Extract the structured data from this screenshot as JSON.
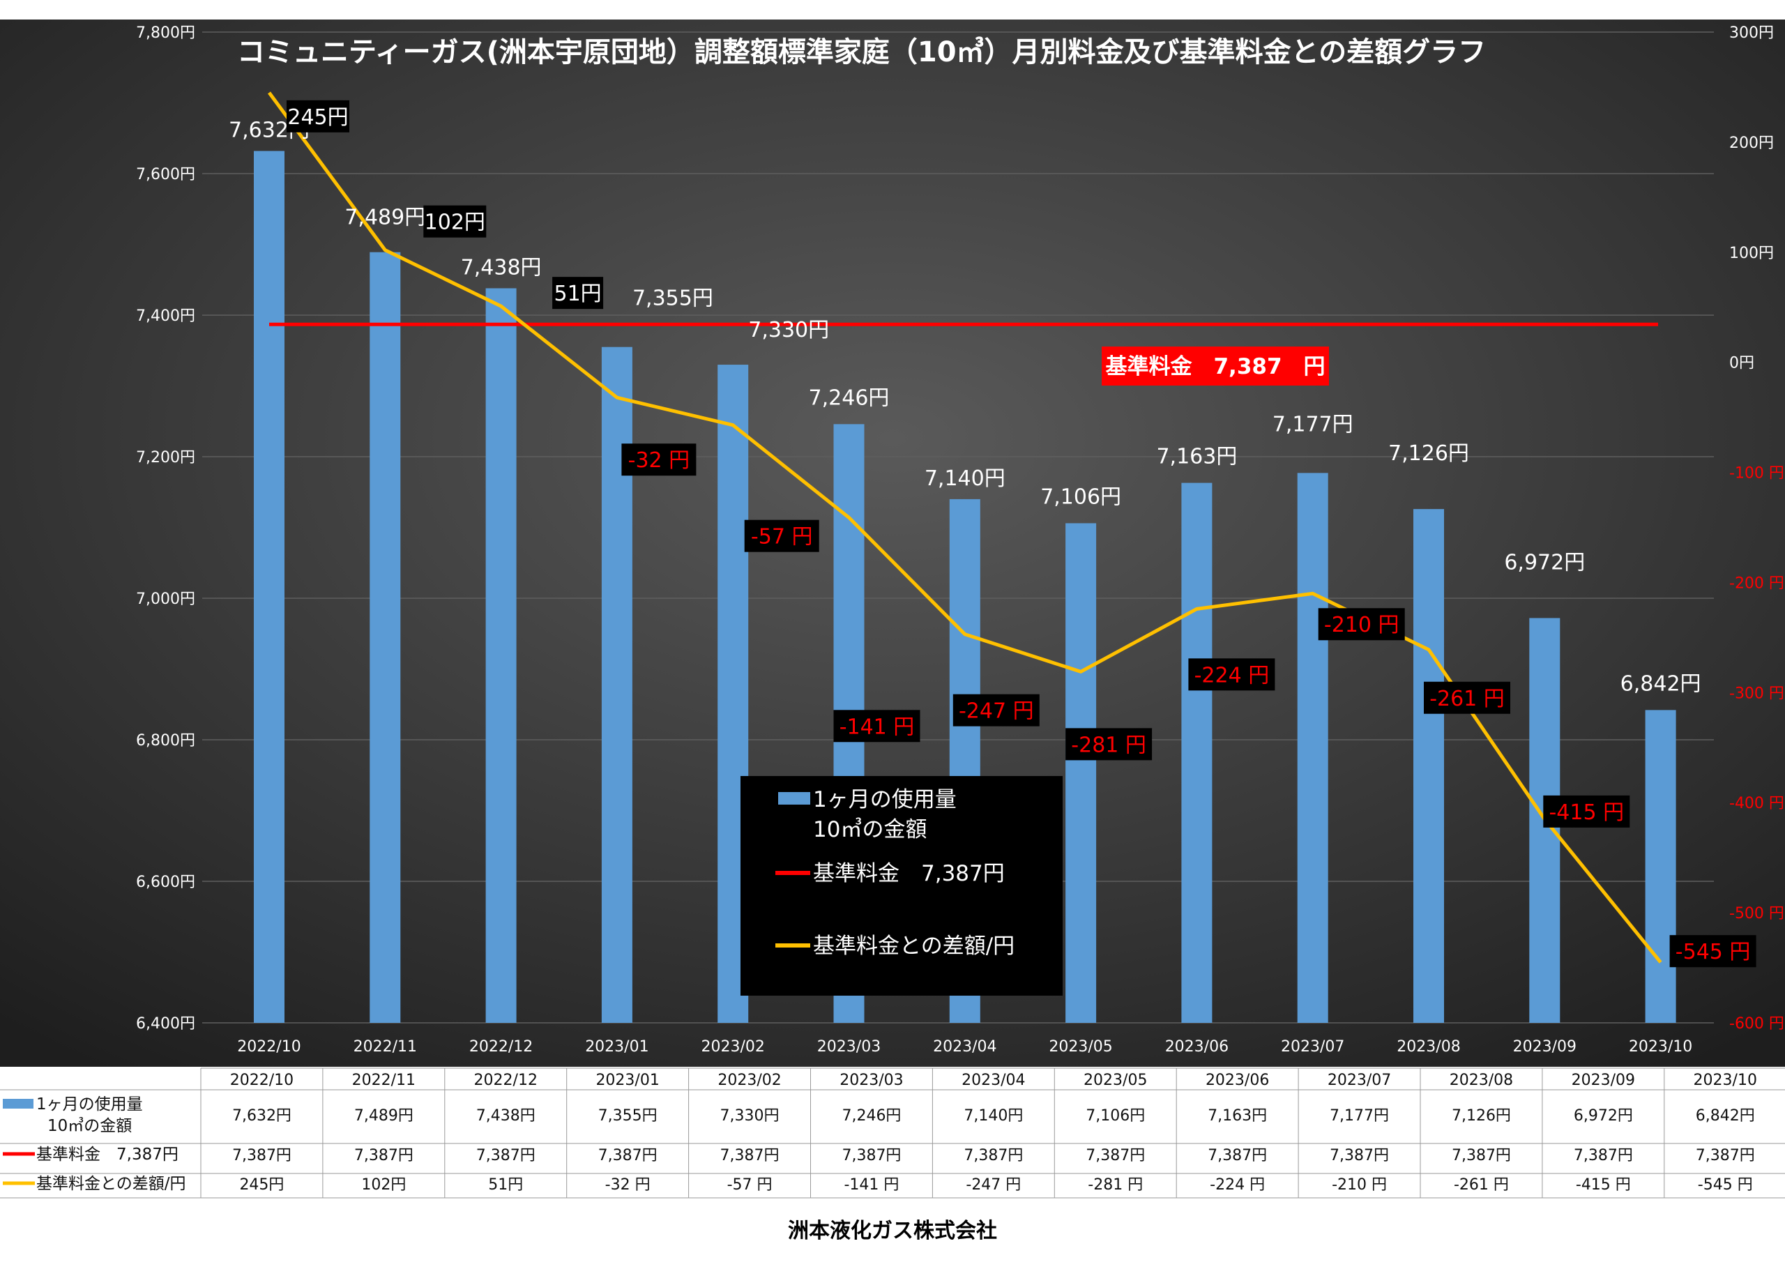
{
  "chart_data": {
    "type": "bar",
    "title": "コミュニティーガス(洲本宇原団地）調整額標準家庭（10㎥）月別料金及び基準料金との差額グラフ",
    "categories": [
      "2022/10",
      "2022/11",
      "2022/12",
      "2023/01",
      "2023/02",
      "2023/03",
      "2023/04",
      "2023/05",
      "2023/06",
      "2023/07",
      "2023/08",
      "2023/09",
      "2023/10"
    ],
    "series": [
      {
        "name": "1ヶ月の使用量 10㎥の金額",
        "type": "bar",
        "axis": "left",
        "color": "#5b9bd5",
        "values": [
          7632,
          7489,
          7438,
          7355,
          7330,
          7246,
          7140,
          7106,
          7163,
          7177,
          7126,
          6972,
          6842
        ]
      },
      {
        "name": "基準料金 7,387円",
        "type": "line",
        "axis": "left",
        "color": "#ff0000",
        "values": [
          7387,
          7387,
          7387,
          7387,
          7387,
          7387,
          7387,
          7387,
          7387,
          7387,
          7387,
          7387,
          7387
        ]
      },
      {
        "name": "基準料金との差額/円",
        "type": "line",
        "axis": "right",
        "color": "#ffc000",
        "values": [
          245,
          102,
          51,
          -32,
          -57,
          -141,
          -247,
          -281,
          -224,
          -210,
          -261,
          -415,
          -545
        ]
      }
    ],
    "bar_labels": [
      "7,632円",
      "7,489円",
      "7,438円",
      "7,355円",
      "7,330円",
      "7,246円",
      "7,140円",
      "7,106円",
      "7,163円",
      "7,177円",
      "7,126円",
      "6,972円",
      "6,842円"
    ],
    "diff_labels": [
      "245円",
      "102円",
      "51円",
      "-32 円",
      "-57 円",
      "-141 円",
      "-247 円",
      "-281 円",
      "-224 円",
      "-210 円",
      "-261 円",
      "-415 円",
      "-545 円"
    ],
    "left_axis": {
      "ylim": [
        6400,
        7800
      ],
      "ticks": [
        6400,
        6600,
        6800,
        7000,
        7200,
        7400,
        7600,
        7800
      ],
      "tick_labels": [
        "6,400円",
        "6,600円",
        "6,800円",
        "7,000円",
        "7,200円",
        "7,400円",
        "7,600円",
        "7,800円"
      ]
    },
    "right_axis": {
      "ylim": [
        -600,
        300
      ],
      "ticks": [
        -600,
        -500,
        -400,
        -300,
        -200,
        -100,
        0,
        100,
        200,
        300
      ],
      "tick_labels": [
        "-600 円",
        "-500 円",
        "-400 円",
        "-300 円",
        "-200 円",
        "-100 円",
        "0円",
        "100円",
        "200円",
        "300円"
      ]
    },
    "base_badge": "基準料金　7,387　円",
    "legend": [
      "1ヶ月の使用量",
      "10㎥の金額",
      "基準料金　7,387円",
      "基準料金との差額/円"
    ],
    "colors": {
      "background": "#2b2b2b",
      "bar": "#5b9bd5",
      "base_line": "#ff0000",
      "diff_line": "#ffc000",
      "negative_text": "#ff0000",
      "label_box": "#000000"
    }
  },
  "table": {
    "headers": [
      "2022/10",
      "2022/11",
      "2022/12",
      "2023/01",
      "2023/02",
      "2023/03",
      "2023/04",
      "2023/05",
      "2023/06",
      "2023/07",
      "2023/08",
      "2023/09",
      "2023/10"
    ],
    "rows": [
      {
        "label_line1": "1ヶ月の使用量",
        "label_line2": "10㎥の金額",
        "values": [
          "7,632円",
          "7,489円",
          "7,438円",
          "7,355円",
          "7,330円",
          "7,246円",
          "7,140円",
          "7,106円",
          "7,163円",
          "7,177円",
          "7,126円",
          "6,972円",
          "6,842円"
        ]
      },
      {
        "label_line1": "基準料金　7,387円",
        "label_line2": "",
        "values": [
          "7,387円",
          "7,387円",
          "7,387円",
          "7,387円",
          "7,387円",
          "7,387円",
          "7,387円",
          "7,387円",
          "7,387円",
          "7,387円",
          "7,387円",
          "7,387円",
          "7,387円"
        ]
      },
      {
        "label_line1": "基準料金との差額/円",
        "label_line2": "",
        "values": [
          "245円",
          "102円",
          "51円",
          "-32 円",
          "-57 円",
          "-141 円",
          "-247 円",
          "-281 円",
          "-224 円",
          "-210 円",
          "-261 円",
          "-415 円",
          "-545 円"
        ]
      }
    ]
  },
  "footer": "洲本液化ガス株式会社"
}
